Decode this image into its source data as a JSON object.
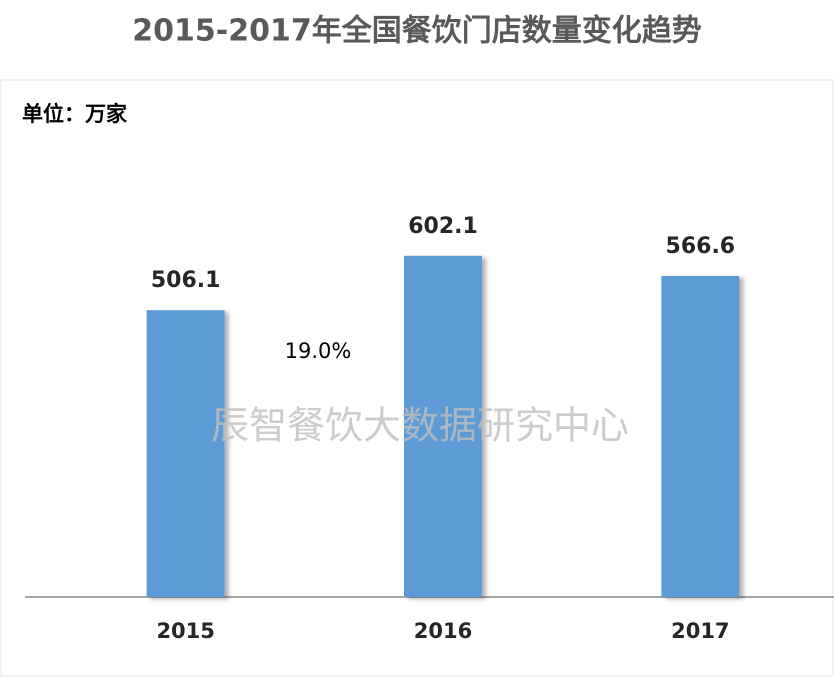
{
  "chart_data": {
    "type": "bar",
    "title": "2015-2017年全国餐饮门店数量变化趋势",
    "unit_label": "单位：万家",
    "categories": [
      "2015",
      "2016",
      "2017"
    ],
    "values": [
      506.1,
      602.1,
      566.6
    ],
    "color": "#5b9bd5",
    "ylim": [
      0,
      900
    ],
    "annotation": "19.0%",
    "watermark": "辰智餐饮大数据研究中心"
  }
}
